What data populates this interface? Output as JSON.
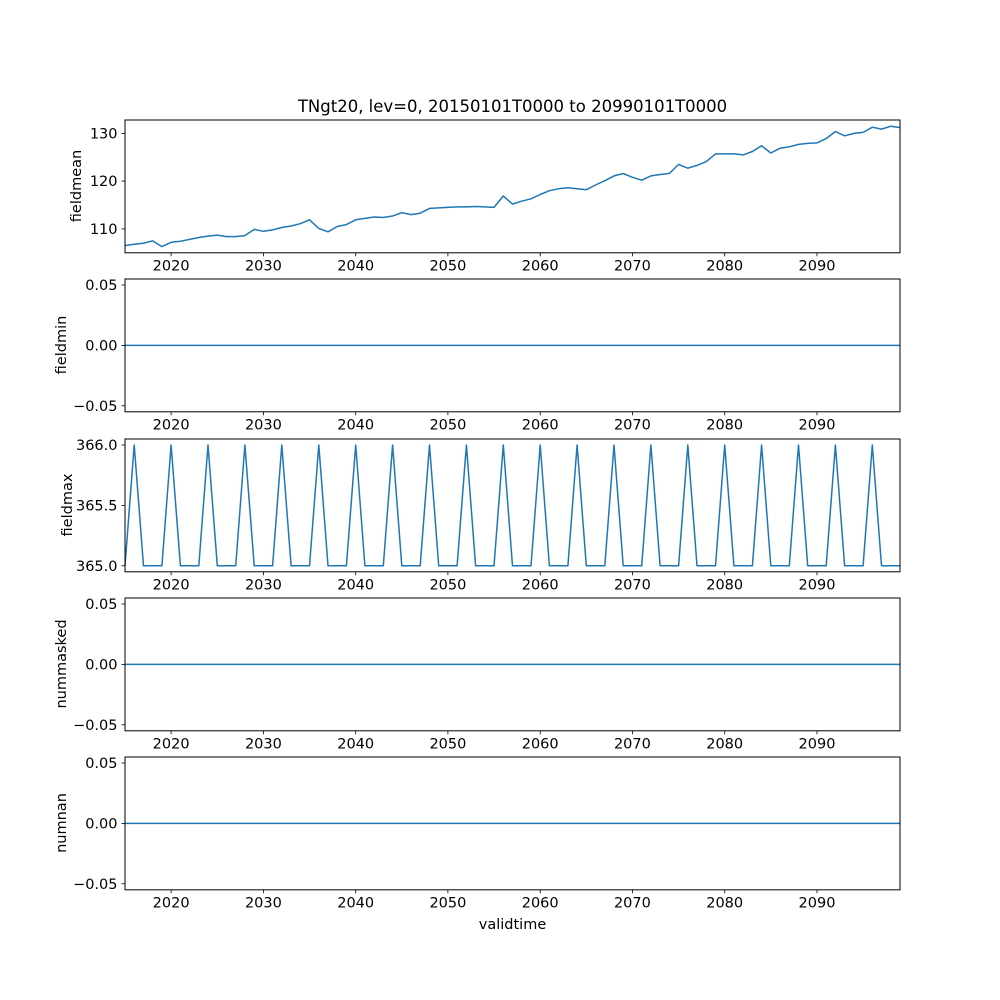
{
  "title": "TNgt20, lev=0, 20150101T0000 to 20990101T0000",
  "xlabel": "validtime",
  "colors": {
    "line": "#1f77b4",
    "frame": "#000000",
    "text": "#000000",
    "background": "#ffffff"
  },
  "x_range": [
    2015,
    2099
  ],
  "x_ticks": [
    2020,
    2030,
    2040,
    2050,
    2060,
    2070,
    2080,
    2090
  ],
  "chart_data": [
    {
      "type": "line",
      "ylabel": "fieldmean",
      "x_start": 2015,
      "x_step": 1,
      "ylim": [
        105.0,
        132.8
      ],
      "yticks": [
        {
          "v": 110,
          "label": "110"
        },
        {
          "v": 120,
          "label": "120"
        },
        {
          "v": 130,
          "label": "130"
        }
      ],
      "values": [
        106.5,
        106.8,
        107.0,
        107.5,
        106.3,
        107.2,
        107.4,
        107.8,
        108.2,
        108.5,
        108.7,
        108.4,
        108.4,
        108.6,
        109.9,
        109.5,
        109.8,
        110.3,
        110.6,
        111.1,
        111.9,
        110.1,
        109.4,
        110.5,
        110.9,
        111.9,
        112.2,
        112.5,
        112.4,
        112.7,
        113.4,
        113.0,
        113.3,
        114.3,
        114.4,
        114.5,
        114.6,
        114.6,
        114.7,
        114.6,
        114.5,
        116.9,
        115.2,
        115.8,
        116.3,
        117.2,
        118.0,
        118.4,
        118.6,
        118.4,
        118.2,
        119.2,
        120.1,
        121.1,
        121.6,
        120.8,
        120.2,
        121.1,
        121.4,
        121.6,
        123.5,
        122.7,
        123.3,
        124.1,
        125.7,
        125.7,
        125.7,
        125.5,
        126.2,
        127.4,
        125.9,
        126.9,
        127.2,
        127.7,
        127.9,
        128.0,
        128.9,
        130.4,
        129.5,
        130.0,
        130.2,
        131.3,
        130.9,
        131.5,
        131.2
      ]
    },
    {
      "type": "line",
      "ylabel": "fieldmin",
      "x_start": 2015,
      "x_step": 1,
      "constant": 0.0,
      "ylim": [
        -0.055,
        0.055
      ],
      "yticks": [
        {
          "v": -0.05,
          "label": "−0.05"
        },
        {
          "v": 0.0,
          "label": "0.00"
        },
        {
          "v": 0.05,
          "label": "0.05"
        }
      ]
    },
    {
      "type": "line",
      "ylabel": "fieldmax",
      "x_start": 2015,
      "x_step": 1,
      "ylim": [
        364.95,
        366.05
      ],
      "yticks": [
        {
          "v": 365.0,
          "label": "365.0"
        },
        {
          "v": 365.5,
          "label": "365.5"
        },
        {
          "v": 366.0,
          "label": "366.0"
        }
      ],
      "values": [
        365,
        366,
        365,
        365,
        365,
        366,
        365,
        365,
        365,
        366,
        365,
        365,
        365,
        366,
        365,
        365,
        365,
        366,
        365,
        365,
        365,
        366,
        365,
        365,
        365,
        366,
        365,
        365,
        365,
        366,
        365,
        365,
        365,
        366,
        365,
        365,
        365,
        366,
        365,
        365,
        365,
        366,
        365,
        365,
        365,
        366,
        365,
        365,
        365,
        366,
        365,
        365,
        365,
        366,
        365,
        365,
        365,
        366,
        365,
        365,
        365,
        366,
        365,
        365,
        365,
        366,
        365,
        365,
        365,
        366,
        365,
        365,
        365,
        366,
        365,
        365,
        365,
        366,
        365,
        365,
        365,
        366,
        365,
        365,
        365
      ]
    },
    {
      "type": "line",
      "ylabel": "nummasked",
      "x_start": 2015,
      "x_step": 1,
      "constant": 0.0,
      "ylim": [
        -0.055,
        0.055
      ],
      "yticks": [
        {
          "v": -0.05,
          "label": "−0.05"
        },
        {
          "v": 0.0,
          "label": "0.00"
        },
        {
          "v": 0.05,
          "label": "0.05"
        }
      ]
    },
    {
      "type": "line",
      "ylabel": "numnan",
      "x_start": 2015,
      "x_step": 1,
      "constant": 0.0,
      "ylim": [
        -0.055,
        0.055
      ],
      "yticks": [
        {
          "v": -0.05,
          "label": "−0.05"
        },
        {
          "v": 0.0,
          "label": "0.00"
        },
        {
          "v": 0.05,
          "label": "0.05"
        }
      ]
    }
  ]
}
